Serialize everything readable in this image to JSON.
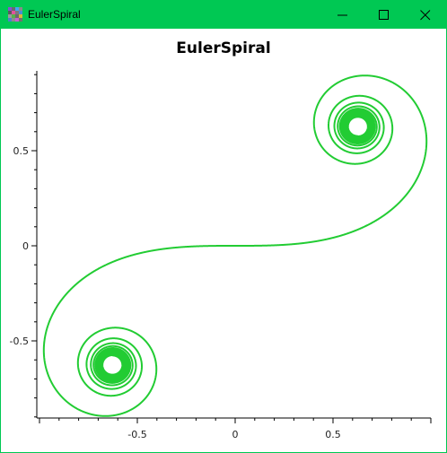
{
  "window": {
    "title": "EulerSpiral",
    "accent_color": "#00c853",
    "buttons": [
      "minimize-icon",
      "maximize-icon",
      "close-icon"
    ]
  },
  "chart_data": {
    "type": "line",
    "title": "EulerSpiral",
    "xlabel": "",
    "ylabel": "",
    "xlim": [
      -1.0,
      1.0
    ],
    "ylim": [
      -0.9,
      0.9
    ],
    "x_ticks": [
      -0.5,
      0,
      0.5
    ],
    "x_tick_labels": [
      "-0.5",
      "0",
      "0.5"
    ],
    "y_ticks": [
      -0.5,
      0,
      0.5
    ],
    "y_tick_labels": [
      "-0.5",
      "0",
      "0.5"
    ],
    "grid": false,
    "series": [
      {
        "color": "#22cc33",
        "curve": "Euler spiral (Fresnel integrals)",
        "t_range": [
          -8,
          8
        ],
        "limit_points": [
          [
            0.627,
            0.627
          ],
          [
            -0.627,
            -0.627
          ]
        ]
      }
    ]
  }
}
